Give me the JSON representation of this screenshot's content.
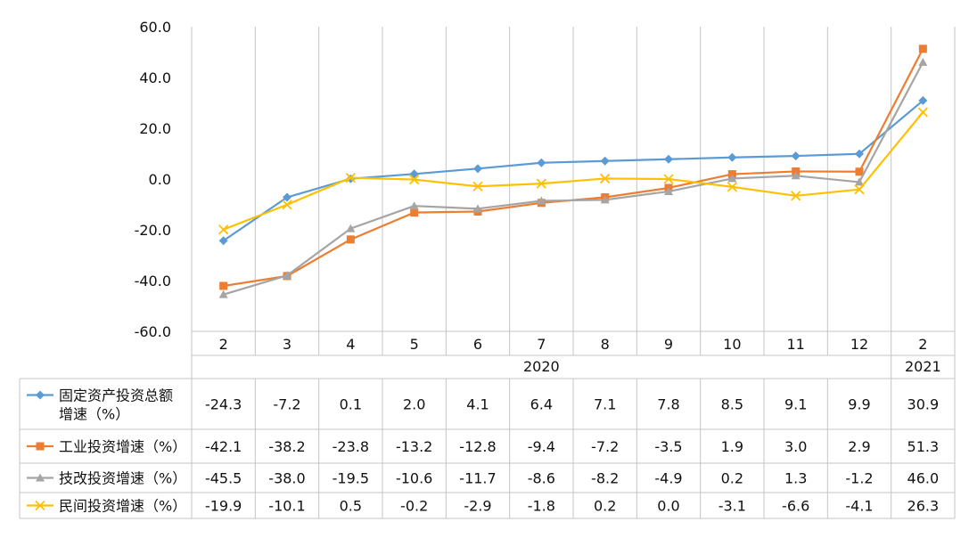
{
  "chart_data": {
    "type": "line",
    "categories": [
      "2",
      "3",
      "4",
      "5",
      "6",
      "7",
      "8",
      "9",
      "10",
      "11",
      "12",
      "2"
    ],
    "year_groups": [
      {
        "label": "2020",
        "from": 0,
        "to": 10
      },
      {
        "label": "2021",
        "from": 11,
        "to": 11
      }
    ],
    "ylim": [
      -60,
      60
    ],
    "yticks": [
      "60.0",
      "40.0",
      "20.0",
      "0.0",
      "-20.0",
      "-40.0",
      "-60.0"
    ],
    "ytick_values": [
      60,
      40,
      20,
      0,
      -20,
      -40,
      -60
    ],
    "grid": "vertical",
    "legend": "data-table-below",
    "series": [
      {
        "name": "固定资产投资总额增速（%）",
        "name_lines": [
          "固定资产投资总额",
          "增速（%）"
        ],
        "marker": "diamond",
        "color": "#5B9BD5",
        "values": [
          -24.3,
          -7.2,
          0.1,
          2.0,
          4.1,
          6.4,
          7.1,
          7.8,
          8.5,
          9.1,
          9.9,
          30.9
        ],
        "labels": [
          "-24.3",
          "-7.2",
          "0.1",
          "2.0",
          "4.1",
          "6.4",
          "7.1",
          "7.8",
          "8.5",
          "9.1",
          "9.9",
          "30.9"
        ]
      },
      {
        "name": "工业投资增速（%）",
        "name_lines": [
          "工业投资增速（%）"
        ],
        "marker": "square",
        "color": "#ED7D31",
        "values": [
          -42.1,
          -38.2,
          -23.8,
          -13.2,
          -12.8,
          -9.4,
          -7.2,
          -3.5,
          1.9,
          3.0,
          2.9,
          51.3
        ],
        "labels": [
          "-42.1",
          "-38.2",
          "-23.8",
          "-13.2",
          "-12.8",
          "-9.4",
          "-7.2",
          "-3.5",
          "1.9",
          "3.0",
          "2.9",
          "51.3"
        ]
      },
      {
        "name": "技改投资增速（%）",
        "name_lines": [
          "技改投资增速（%）"
        ],
        "marker": "triangle",
        "color": "#A5A5A5",
        "values": [
          -45.5,
          -38.0,
          -19.5,
          -10.6,
          -11.7,
          -8.6,
          -8.2,
          -4.9,
          0.2,
          1.3,
          -1.2,
          46.0
        ],
        "labels": [
          "-45.5",
          "-38.0",
          "-19.5",
          "-10.6",
          "-11.7",
          "-8.6",
          "-8.2",
          "-4.9",
          "0.2",
          "1.3",
          "-1.2",
          "46.0"
        ]
      },
      {
        "name": "民间投资增速（%）",
        "name_lines": [
          "民间投资增速（%）"
        ],
        "marker": "x",
        "color": "#FFC000",
        "values": [
          -19.9,
          -10.1,
          0.5,
          -0.2,
          -2.9,
          -1.8,
          0.2,
          0.0,
          -3.1,
          -6.6,
          -4.1,
          26.3
        ],
        "labels": [
          "-19.9",
          "-10.1",
          "0.5",
          "-0.2",
          "-2.9",
          "-1.8",
          "0.2",
          "0.0",
          "-3.1",
          "-6.6",
          "-4.1",
          "26.3"
        ]
      }
    ]
  }
}
